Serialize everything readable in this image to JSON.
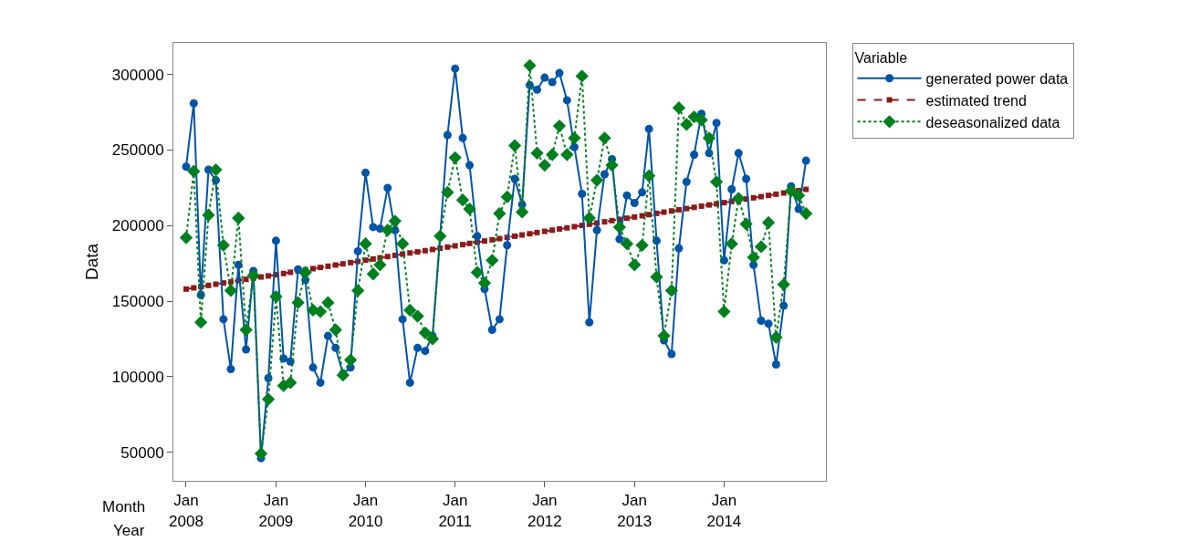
{
  "chart_data": {
    "type": "line",
    "ylabel": "Data",
    "legend_title": "Variable",
    "legend": "right",
    "annotations": [
      "Month",
      "Year"
    ],
    "x": [
      "2008-01",
      "2008-02",
      "2008-03",
      "2008-04",
      "2008-05",
      "2008-06",
      "2008-07",
      "2008-08",
      "2008-09",
      "2008-10",
      "2008-11",
      "2008-12",
      "2009-01",
      "2009-02",
      "2009-03",
      "2009-04",
      "2009-05",
      "2009-06",
      "2009-07",
      "2009-08",
      "2009-09",
      "2009-10",
      "2009-11",
      "2009-12",
      "2010-01",
      "2010-02",
      "2010-03",
      "2010-04",
      "2010-05",
      "2010-06",
      "2010-07",
      "2010-08",
      "2010-09",
      "2010-10",
      "2010-11",
      "2010-12",
      "2011-01",
      "2011-02",
      "2011-03",
      "2011-04",
      "2011-05",
      "2011-06",
      "2011-07",
      "2011-08",
      "2011-09",
      "2011-10",
      "2011-11",
      "2011-12",
      "2012-01",
      "2012-02",
      "2012-03",
      "2012-04",
      "2012-05",
      "2012-06",
      "2012-07",
      "2012-08",
      "2012-09",
      "2012-10",
      "2012-11",
      "2012-12",
      "2013-01",
      "2013-02",
      "2013-03",
      "2013-04",
      "2013-05",
      "2013-06",
      "2013-07",
      "2013-08",
      "2013-09",
      "2013-10",
      "2013-11",
      "2013-12",
      "2014-01",
      "2014-02",
      "2014-03",
      "2014-04",
      "2014-05",
      "2014-06",
      "2014-07",
      "2014-08",
      "2014-09",
      "2014-10",
      "2014-11",
      "2014-12"
    ],
    "xlim": [
      "2007-11-10",
      "2015-02-20"
    ],
    "xticks": [
      {
        "value": "2008-01",
        "label": "Jan\n2008"
      },
      {
        "value": "2009-01",
        "label": "Jan\n2009"
      },
      {
        "value": "2010-01",
        "label": "Jan\n2010"
      },
      {
        "value": "2011-01",
        "label": "Jan\n2011"
      },
      {
        "value": "2012-01",
        "label": "Jan\n2012"
      },
      {
        "value": "2013-01",
        "label": "Jan\n2013"
      },
      {
        "value": "2014-01",
        "label": "Jan\n2014"
      }
    ],
    "ylim": [
      31000,
      321000
    ],
    "yticks": [
      50000,
      100000,
      150000,
      200000,
      250000,
      300000
    ],
    "series": [
      {
        "name": "generated power data",
        "color": "#0054a6",
        "marker": "circle",
        "line_style": "solid",
        "values": [
          239000,
          281000,
          154000,
          237000,
          230000,
          138000,
          105000,
          174000,
          118000,
          170000,
          46000,
          99000,
          190000,
          112000,
          110000,
          171000,
          164000,
          106000,
          96000,
          127000,
          119000,
          102000,
          106000,
          183000,
          235000,
          199000,
          198000,
          225000,
          197000,
          138000,
          96000,
          119000,
          117000,
          127000,
          193000,
          260000,
          304000,
          258000,
          240000,
          193000,
          158000,
          131000,
          138000,
          187000,
          231000,
          214000,
          293000,
          290000,
          298000,
          295000,
          301000,
          283000,
          252000,
          221000,
          136000,
          197000,
          234000,
          244000,
          191000,
          220000,
          215000,
          222000,
          264000,
          190000,
          124000,
          115000,
          185000,
          229000,
          247000,
          274000,
          248000,
          268000,
          177000,
          224000,
          248000,
          231000,
          174000,
          137000,
          135000,
          108000,
          147000,
          226000,
          211000,
          243000
        ]
      },
      {
        "name": "estimated trend",
        "color": "#8b1a1a",
        "marker": "square",
        "line_style": "dashed",
        "values": [
          158000,
          158800,
          159600,
          160400,
          161200,
          162000,
          162800,
          163600,
          164400,
          165200,
          166000,
          166700,
          167500,
          168300,
          169100,
          169900,
          170700,
          171500,
          172300,
          173100,
          173900,
          174700,
          175500,
          176300,
          177100,
          177900,
          178700,
          179500,
          180300,
          181100,
          181900,
          182600,
          183400,
          184200,
          185000,
          185800,
          186600,
          187400,
          188200,
          189000,
          189800,
          190600,
          191400,
          192200,
          193000,
          193800,
          194600,
          195400,
          196200,
          197000,
          197800,
          198500,
          199300,
          200100,
          200900,
          201700,
          202500,
          203300,
          204100,
          204900,
          205700,
          206500,
          207300,
          208100,
          208900,
          209700,
          210500,
          211300,
          212100,
          212900,
          213700,
          214400,
          215200,
          216000,
          216800,
          217600,
          218400,
          219200,
          220000,
          220800,
          221600,
          222400,
          223200,
          224000
        ]
      },
      {
        "name": "deseasonalized data",
        "color": "#007f1f",
        "marker": "diamond",
        "line_style": "dotted",
        "values": [
          192000,
          236000,
          136000,
          207000,
          237000,
          187000,
          157000,
          205000,
          131000,
          167000,
          49000,
          85000,
          153000,
          94000,
          96000,
          149000,
          169000,
          144000,
          143000,
          149000,
          131000,
          101000,
          111000,
          157000,
          188000,
          168000,
          174000,
          197000,
          203000,
          188000,
          144000,
          140000,
          129000,
          125000,
          193000,
          222000,
          245000,
          217000,
          211000,
          169000,
          162000,
          177000,
          208000,
          219000,
          253000,
          209000,
          306000,
          248000,
          240000,
          247000,
          266000,
          247000,
          258000,
          299000,
          205000,
          230000,
          258000,
          240000,
          199000,
          188000,
          174000,
          187000,
          233000,
          166000,
          127000,
          157000,
          278000,
          267000,
          272000,
          270000,
          258000,
          229000,
          143000,
          188000,
          218000,
          201000,
          179000,
          186000,
          202000,
          126000,
          161000,
          223000,
          220000,
          208000
        ]
      }
    ]
  }
}
